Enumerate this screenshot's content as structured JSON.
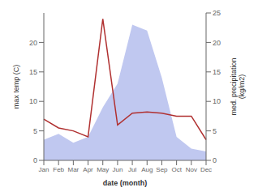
{
  "chart_data": {
    "type": "line",
    "categories": [
      "Jan",
      "Feb",
      "Mar",
      "Apr",
      "May",
      "Jun",
      "Jul",
      "Aug",
      "Sep",
      "Oct",
      "Nov",
      "Dec"
    ],
    "xlabel": "date (month)",
    "ylabel": "max temp (C)",
    "y2label": "med. precipitation\n(kg/m2)",
    "ylim": [
      0,
      25
    ],
    "yticks": [
      0,
      5,
      10,
      15,
      20
    ],
    "y2lim": [
      0,
      25
    ],
    "y2ticks": [
      0,
      5,
      10,
      15,
      20,
      25
    ],
    "grid": false,
    "series": [
      {
        "type": "area",
        "axis": "y2",
        "color": "#c0c8f0",
        "values": [
          3.5,
          4.5,
          3.0,
          4.0,
          9.0,
          13.0,
          23.0,
          22.0,
          14.0,
          4.0,
          2.0,
          1.5
        ]
      },
      {
        "type": "line",
        "axis": "y",
        "color": "#b03030",
        "values": [
          7.0,
          5.5,
          5.0,
          4.0,
          24.0,
          6.0,
          8.0,
          8.2,
          8.0,
          7.5,
          7.5,
          3.5
        ]
      }
    ]
  }
}
